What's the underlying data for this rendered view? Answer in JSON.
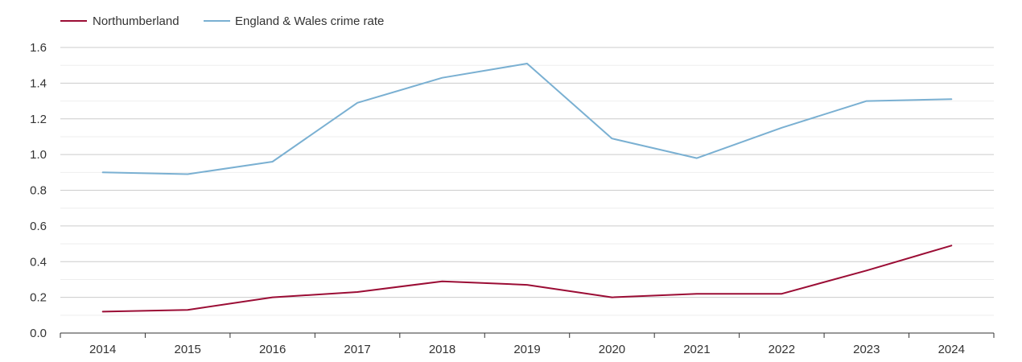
{
  "chart_data": {
    "type": "line",
    "title": "",
    "xlabel": "",
    "ylabel": "",
    "x": [
      "2014",
      "2015",
      "2016",
      "2017",
      "2018",
      "2019",
      "2020",
      "2021",
      "2022",
      "2023",
      "2024"
    ],
    "ylim": [
      0,
      1.6
    ],
    "yticks": [
      "0.0",
      "0.2",
      "0.4",
      "0.6",
      "0.8",
      "1.0",
      "1.2",
      "1.4",
      "1.6"
    ],
    "grid": true,
    "legend_position": "top-left",
    "series": [
      {
        "name": "Northumberland",
        "color": "#9b0d35",
        "values": [
          0.12,
          0.13,
          0.2,
          0.23,
          0.29,
          0.27,
          0.2,
          0.22,
          0.22,
          0.35,
          0.49
        ]
      },
      {
        "name": "England & Wales crime rate",
        "color": "#7ab0d2",
        "values": [
          0.9,
          0.89,
          0.96,
          1.29,
          1.43,
          1.51,
          1.09,
          0.98,
          1.15,
          1.3,
          1.31
        ]
      }
    ]
  }
}
